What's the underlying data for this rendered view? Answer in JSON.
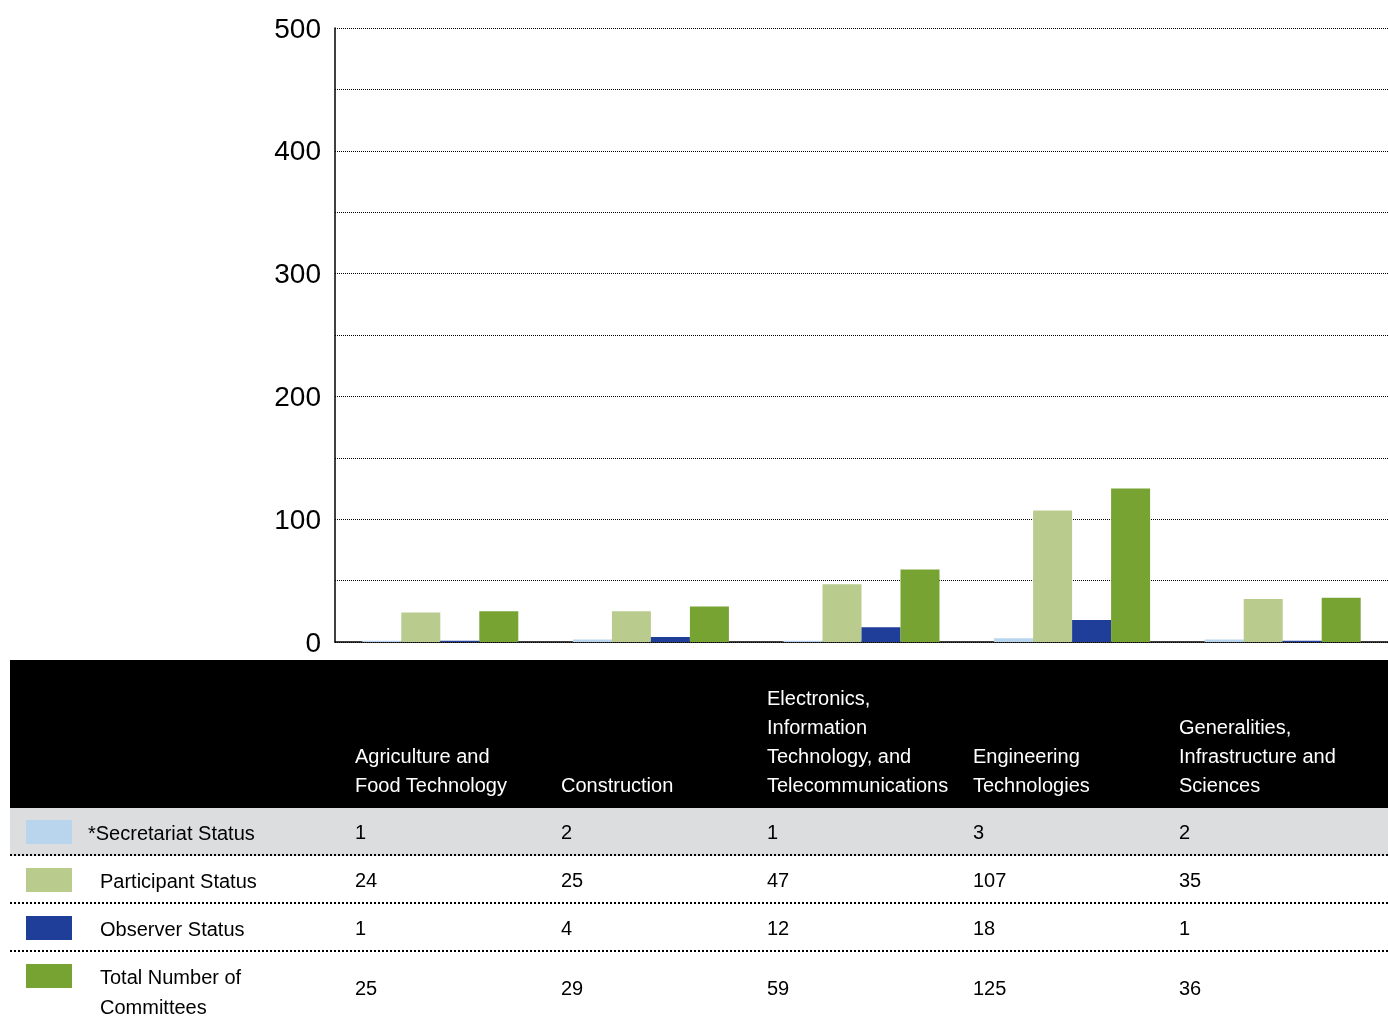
{
  "chart_data": {
    "type": "bar",
    "categories": [
      "Agriculture and Food Technology",
      "Construction",
      "Electronics, Information Technology, and Telecommunications",
      "Engineering Technologies",
      "Generalities, Infrastructure and Sciences"
    ],
    "series": [
      {
        "name": "*Secretariat Status",
        "color": "#b9d5ee",
        "values": [
          1,
          2,
          1,
          3,
          2
        ]
      },
      {
        "name": "Participant Status",
        "color": "#b9cc8d",
        "values": [
          24,
          25,
          47,
          107,
          35
        ]
      },
      {
        "name": "Observer Status",
        "color": "#1f3e99",
        "values": [
          1,
          4,
          12,
          18,
          1
        ]
      },
      {
        "name": "Total Number of Committees",
        "color": "#76a332",
        "values": [
          25,
          29,
          59,
          125,
          36
        ]
      }
    ],
    "ylim": [
      0,
      500
    ],
    "yticks": [
      0,
      {
        "value": 50,
        "label": null
      },
      100,
      {
        "value": 150,
        "label": null
      },
      200,
      {
        "value": 250,
        "label": null
      },
      300,
      {
        "value": 350,
        "label": null
      },
      400,
      {
        "value": 450,
        "label": null
      },
      500
    ],
    "grid": "y",
    "data_labels": true,
    "legend": "bottom left",
    "tick_labels": "y"
  }
}
